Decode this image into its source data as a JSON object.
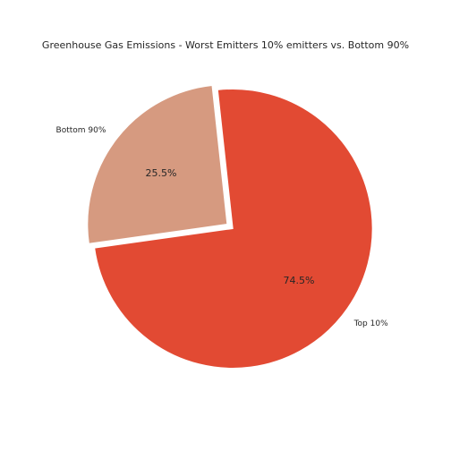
{
  "chart_data": {
    "type": "pie",
    "title": "Greenhouse Gas Emissions - Worst Emitters 10% emitters vs. Bottom 90%",
    "labels": [
      "Top 10%",
      "Bottom 90%"
    ],
    "values": [
      74.5,
      25.5
    ],
    "value_labels": [
      "74.5%",
      "25.5%"
    ],
    "colors": [
      "#e24a33",
      "#d69a80"
    ],
    "exploded": true,
    "legend": "none"
  }
}
